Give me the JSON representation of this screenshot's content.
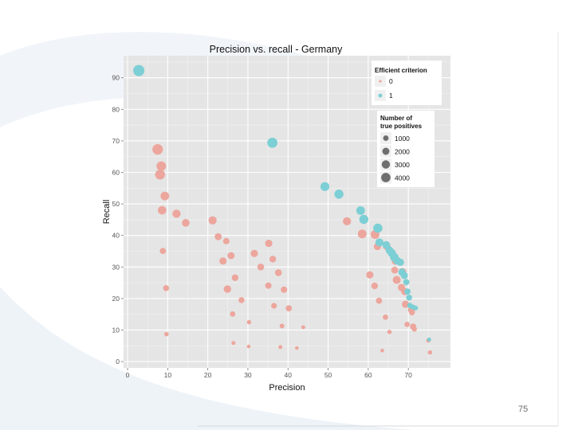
{
  "page": {
    "number": "75"
  },
  "colors": {
    "panel": "#e5e5e5",
    "grid_major": "#ffffff",
    "series_0": "#eca69d",
    "series_1": "#7ccfd4",
    "size_key": "#6e6e6e"
  },
  "chart_data": {
    "type": "scatter",
    "title": "Precision vs. recall - Germany",
    "xlabel": "Precision",
    "ylabel": "Recall",
    "xlim": [
      -1,
      80.5
    ],
    "ylim": [
      -2,
      97
    ],
    "xticks": [
      0,
      10,
      20,
      30,
      40,
      50,
      60,
      70
    ],
    "yticks": [
      0,
      10,
      20,
      30,
      40,
      50,
      60,
      70,
      80,
      90
    ],
    "grid": true,
    "legends": [
      {
        "title": "Efficient criterion",
        "placement": "top-right",
        "entries": [
          {
            "label": "0",
            "color_key": "series_0"
          },
          {
            "label": "1",
            "color_key": "series_1"
          }
        ]
      },
      {
        "title": "Number of true positives",
        "title_lines": [
          "Number of",
          "true positives"
        ],
        "placement": "right",
        "entries": [
          {
            "label": "1000",
            "size": 1000
          },
          {
            "label": "2000",
            "size": 2000
          },
          {
            "label": "3000",
            "size": 3000
          },
          {
            "label": "4000",
            "size": 4000
          }
        ]
      }
    ],
    "series": [
      {
        "name": "0",
        "color_key": "series_0",
        "points": [
          [
            7.5,
            67.3,
            3600
          ],
          [
            8.4,
            62.0,
            2800
          ],
          [
            8.1,
            59.3,
            3100
          ],
          [
            9.3,
            52.5,
            2200
          ],
          [
            8.6,
            48.0,
            2100
          ],
          [
            12.2,
            46.9,
            1900
          ],
          [
            14.5,
            44.0,
            1600
          ],
          [
            21.2,
            44.8,
            1900
          ],
          [
            8.8,
            35.1,
            900
          ],
          [
            9.6,
            23.3,
            800
          ],
          [
            9.7,
            8.7,
            300
          ],
          [
            22.6,
            39.6,
            1300
          ],
          [
            24.6,
            38.2,
            1000
          ],
          [
            23.8,
            31.9,
            1400
          ],
          [
            25.8,
            33.6,
            1300
          ],
          [
            26.8,
            26.6,
            1100
          ],
          [
            24.9,
            23.0,
            1500
          ],
          [
            28.4,
            19.5,
            800
          ],
          [
            26.2,
            15.1,
            600
          ],
          [
            26.4,
            5.9,
            200
          ],
          [
            30.3,
            12.5,
            300
          ],
          [
            30.2,
            4.8,
            150
          ],
          [
            31.6,
            34.3,
            1400
          ],
          [
            33.2,
            30.0,
            1200
          ],
          [
            35.2,
            37.5,
            1400
          ],
          [
            36.2,
            32.5,
            1100
          ],
          [
            37.6,
            28.2,
            1200
          ],
          [
            35.1,
            24.1,
            1000
          ],
          [
            39.0,
            22.8,
            1000
          ],
          [
            36.5,
            17.7,
            700
          ],
          [
            38.5,
            11.3,
            400
          ],
          [
            38.1,
            4.6,
            200
          ],
          [
            40.2,
            16.9,
            900
          ],
          [
            42.2,
            4.3,
            150
          ],
          [
            43.8,
            10.9,
            200
          ],
          [
            54.7,
            44.5,
            1900
          ],
          [
            58.5,
            40.5,
            2300
          ],
          [
            61.7,
            40.3,
            2300
          ],
          [
            62.3,
            36.5,
            1400
          ],
          [
            60.4,
            27.5,
            1400
          ],
          [
            61.6,
            24.0,
            1100
          ],
          [
            62.7,
            19.3,
            900
          ],
          [
            64.3,
            14.1,
            600
          ],
          [
            65.3,
            9.4,
            300
          ],
          [
            63.5,
            3.5,
            150
          ],
          [
            64.6,
            36.6,
            1600
          ],
          [
            66.8,
            31.9,
            1600
          ],
          [
            67.1,
            25.9,
            1800
          ],
          [
            66.6,
            29.0,
            1200
          ],
          [
            68.5,
            28.4,
            1800
          ],
          [
            68.3,
            23.5,
            1400
          ],
          [
            69.1,
            22.2,
            1300
          ],
          [
            69.3,
            18.2,
            1400
          ],
          [
            70.8,
            16.4,
            1300
          ],
          [
            71.2,
            11.1,
            900
          ],
          [
            70.9,
            15.6,
            800
          ],
          [
            69.7,
            11.8,
            600
          ],
          [
            71.5,
            10.3,
            500
          ],
          [
            75.0,
            6.7,
            300
          ],
          [
            75.4,
            2.9,
            300
          ]
        ]
      },
      {
        "name": "1",
        "color_key": "series_1",
        "points": [
          [
            2.8,
            92.3,
            4200
          ],
          [
            36.1,
            69.4,
            3300
          ],
          [
            49.2,
            55.5,
            2400
          ],
          [
            52.7,
            53.1,
            2500
          ],
          [
            58.1,
            47.9,
            2200
          ],
          [
            58.9,
            45.1,
            2500
          ],
          [
            62.4,
            42.3,
            2600
          ],
          [
            62.8,
            37.8,
            1800
          ],
          [
            64.5,
            37.0,
            1600
          ],
          [
            65.3,
            35.3,
            1700
          ],
          [
            65.9,
            34.4,
            1900
          ],
          [
            66.5,
            33.1,
            2100
          ],
          [
            67.2,
            32.0,
            1700
          ],
          [
            68.0,
            31.5,
            1500
          ],
          [
            68.4,
            28.4,
            1300
          ],
          [
            69.0,
            27.3,
            1300
          ],
          [
            69.5,
            25.2,
            900
          ],
          [
            69.8,
            22.2,
            900
          ],
          [
            70.2,
            20.3,
            800
          ],
          [
            70.4,
            17.8,
            600
          ],
          [
            71.1,
            17.3,
            500
          ],
          [
            71.8,
            17.0,
            400
          ],
          [
            75.2,
            7.0,
            200
          ]
        ]
      }
    ]
  }
}
